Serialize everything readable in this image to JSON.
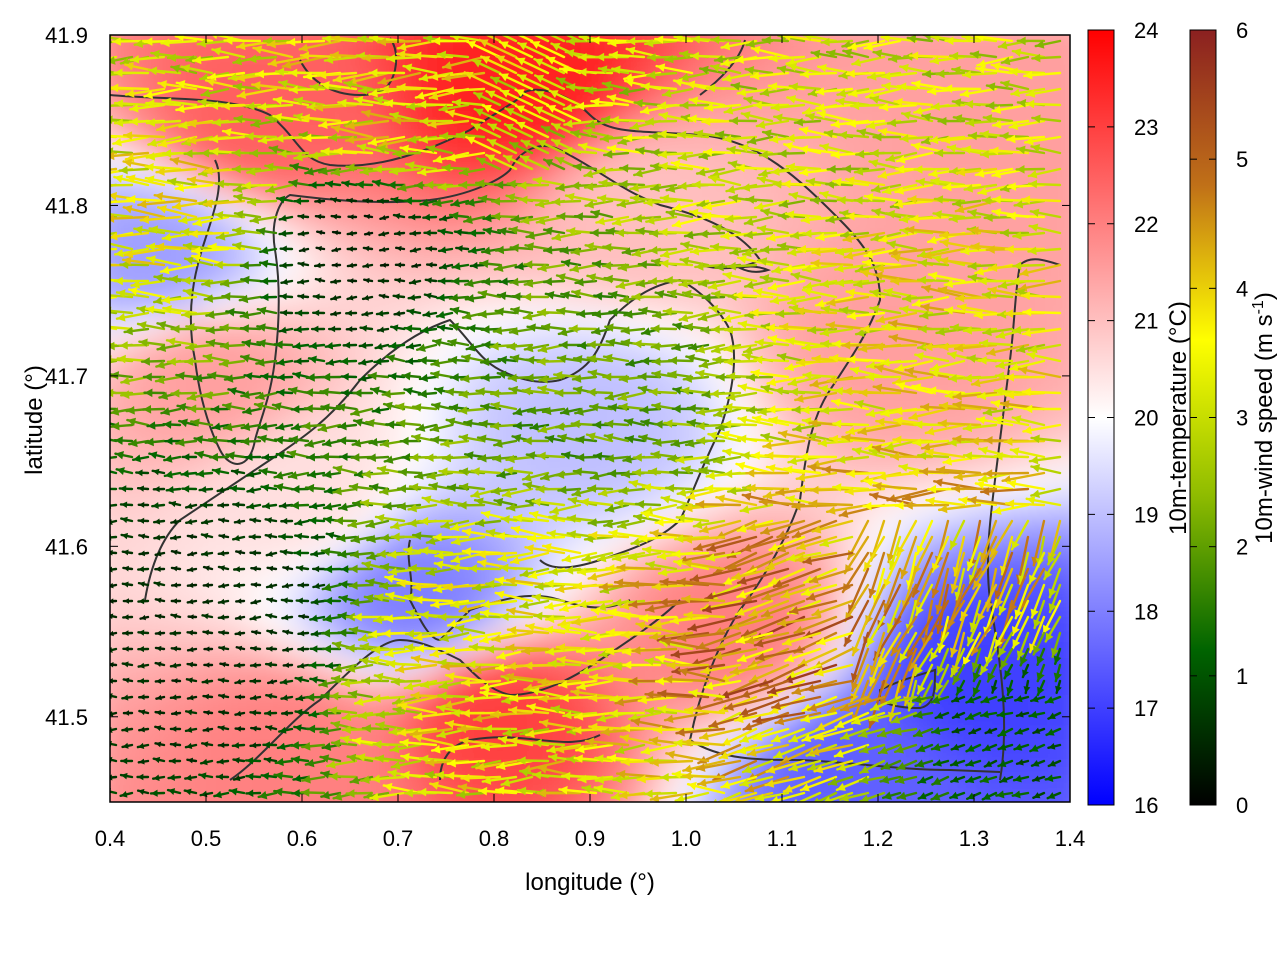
{
  "chart_data": {
    "type": "heatmap",
    "title": "",
    "xlabel": "longitude (°)",
    "ylabel": "latitude (°)",
    "xlim": [
      0.4,
      1.4
    ],
    "ylim": [
      41.45,
      41.9
    ],
    "x_ticks": [
      "0.4",
      "0.5",
      "0.6",
      "0.7",
      "0.8",
      "0.9",
      "1.0",
      "1.1",
      "1.2",
      "1.3",
      "1.4"
    ],
    "y_ticks": [
      "41.5",
      "41.6",
      "41.7",
      "41.8",
      "41.9"
    ],
    "colorbars": [
      {
        "name": "temperature",
        "label": "10m-temperature (°C)",
        "range": [
          16,
          24
        ],
        "ticks": [
          "16",
          "17",
          "18",
          "19",
          "20",
          "21",
          "22",
          "23",
          "24"
        ],
        "colors": [
          "#0000ff",
          "#ffffff",
          "#ff0000"
        ]
      },
      {
        "name": "wind-speed",
        "label_main": "10m-wind speed (m s",
        "label_sup": "-1",
        "label_end": ")",
        "range": [
          0,
          6
        ],
        "ticks": [
          "0",
          "1",
          "2",
          "3",
          "4",
          "5",
          "6"
        ],
        "colors": [
          "#000000",
          "#006400",
          "#8fbc00",
          "#ffff00",
          "#c07018",
          "#8b2020"
        ]
      }
    ],
    "wind_direction": "predominantly westward (from the east)",
    "temperature_regions": [
      {
        "lon": 0.55,
        "lat": 41.85,
        "temp": 22.5
      },
      {
        "lon": 0.83,
        "lat": 41.87,
        "temp": 23.5
      },
      {
        "lon": 0.5,
        "lat": 41.7,
        "temp": 21.5
      },
      {
        "lon": 0.45,
        "lat": 41.77,
        "temp": 18.5
      },
      {
        "lon": 0.72,
        "lat": 41.57,
        "temp": 18.0
      },
      {
        "lon": 0.9,
        "lat": 41.67,
        "temp": 19.0
      },
      {
        "lon": 1.05,
        "lat": 41.55,
        "temp": 22.0
      },
      {
        "lon": 1.22,
        "lat": 41.72,
        "temp": 21.5
      },
      {
        "lon": 1.3,
        "lat": 41.52,
        "temp": 17.0
      },
      {
        "lon": 1.18,
        "lat": 41.47,
        "temp": 17.5
      },
      {
        "lon": 0.6,
        "lat": 41.48,
        "temp": 22.0
      },
      {
        "lon": 0.8,
        "lat": 41.5,
        "temp": 23.0
      },
      {
        "lon": 0.95,
        "lat": 41.8,
        "temp": 21.0
      },
      {
        "lon": 1.35,
        "lat": 41.85,
        "temp": 21.5
      },
      {
        "lon": 0.6,
        "lat": 41.63,
        "temp": 20.5
      }
    ],
    "wind_regions": [
      {
        "lon": 0.65,
        "lat": 41.78,
        "speed": 0.4
      },
      {
        "lon": 0.5,
        "lat": 41.55,
        "speed": 0.5
      },
      {
        "lon": 0.9,
        "lat": 41.7,
        "speed": 2.0
      },
      {
        "lon": 1.1,
        "lat": 41.85,
        "speed": 3.0
      },
      {
        "lon": 1.25,
        "lat": 41.72,
        "speed": 3.5
      },
      {
        "lon": 1.15,
        "lat": 41.55,
        "speed": 4.5
      },
      {
        "lon": 1.28,
        "lat": 41.58,
        "speed": 4.0
      },
      {
        "lon": 0.82,
        "lat": 41.53,
        "speed": 3.5
      },
      {
        "lon": 0.5,
        "lat": 41.8,
        "speed": 3.5
      },
      {
        "lon": 0.7,
        "lat": 41.86,
        "speed": 3.5
      },
      {
        "lon": 1.35,
        "lat": 41.5,
        "speed": 1.0
      }
    ]
  }
}
